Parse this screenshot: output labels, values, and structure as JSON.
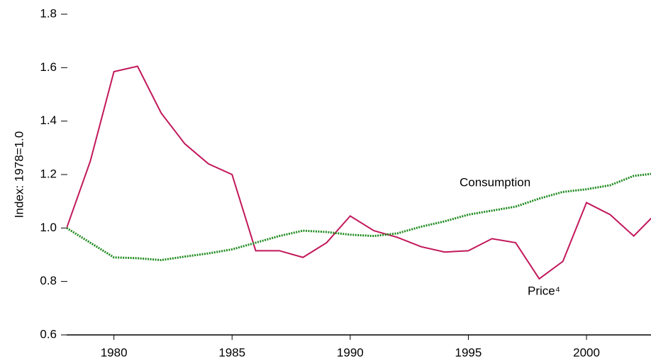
{
  "chart_data": {
    "type": "line",
    "y_label": "Index:  1978=1.0",
    "x": [
      1978,
      1979,
      1980,
      1981,
      1982,
      1983,
      1984,
      1985,
      1986,
      1987,
      1988,
      1989,
      1990,
      1991,
      1992,
      1993,
      1994,
      1995,
      1996,
      1997,
      1998,
      1999,
      2000,
      2001,
      2002,
      2003
    ],
    "series": [
      {
        "name": "Price⁴",
        "color": "#c2185b",
        "style": "solid",
        "values": [
          1.0,
          1.25,
          1.585,
          1.605,
          1.43,
          1.315,
          1.24,
          1.2,
          0.915,
          0.915,
          0.89,
          0.945,
          1.045,
          0.99,
          0.965,
          0.93,
          0.91,
          0.915,
          0.96,
          0.945,
          0.81,
          0.875,
          1.095,
          1.05,
          0.97,
          1.06
        ]
      },
      {
        "name": "Consumption",
        "color": "#1e8a1e",
        "style": "dotted",
        "values": [
          1.0,
          0.945,
          0.89,
          0.887,
          0.88,
          0.893,
          0.905,
          0.92,
          0.945,
          0.97,
          0.99,
          0.985,
          0.975,
          0.97,
          0.98,
          1.005,
          1.025,
          1.05,
          1.065,
          1.08,
          1.11,
          1.135,
          1.145,
          1.16,
          1.195,
          1.205
        ]
      }
    ],
    "xlim": [
      1978,
      2003
    ],
    "xticks": [
      1980,
      1985,
      1990,
      1995,
      2000
    ],
    "ylim": [
      0.6,
      1.8
    ],
    "yticks": [
      0.6,
      0.8,
      {
        "value": 1,
        "label": "1.0"
      },
      1.2,
      1.4,
      1.6,
      1.8
    ],
    "grid": false
  }
}
